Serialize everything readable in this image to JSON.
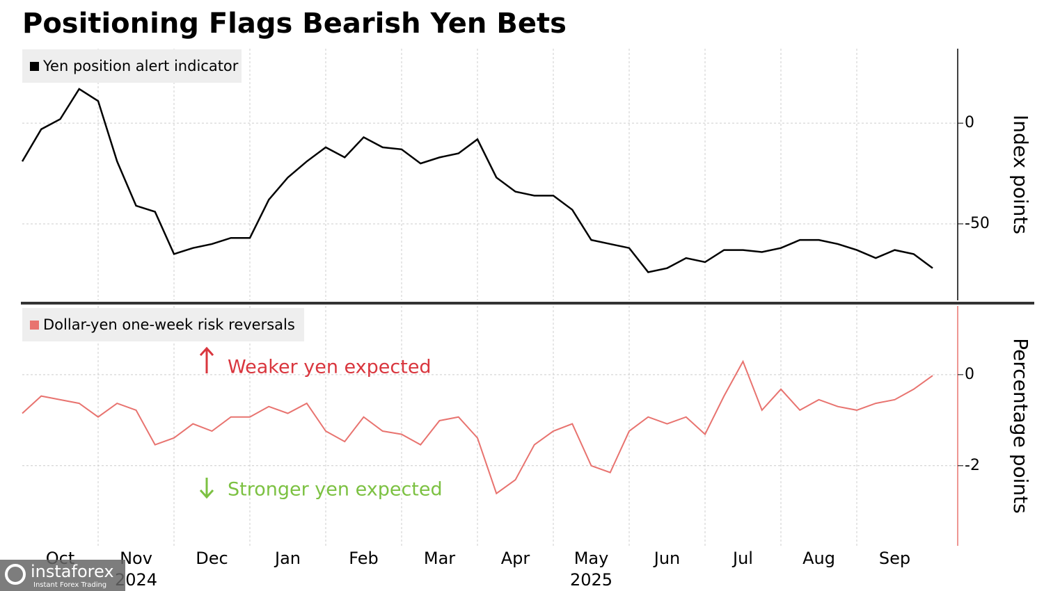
{
  "chart_data": [
    {
      "type": "line",
      "title": "Positioning Flags Bearish Yen Bets",
      "y_label": "Index points",
      "series": [
        {
          "name": "Yen position alert indicator",
          "color": "#000000",
          "values": [
            -19,
            -3,
            2,
            17,
            11,
            -19,
            -41,
            -44,
            -65,
            -62,
            -60,
            -57,
            -57,
            -38,
            -27,
            -19,
            -12,
            -17,
            -7,
            -12,
            -13,
            -20,
            -17,
            -15,
            -8,
            -27,
            -34,
            -36,
            -36,
            -43,
            -58,
            -60,
            -62,
            -74,
            -72,
            -67,
            -69,
            -63,
            -63,
            -64,
            -62,
            -58,
            -58,
            -60,
            -63,
            -67,
            -63,
            -65,
            -72
          ]
        }
      ],
      "ylim": [
        -88,
        37
      ],
      "yticks": [
        0,
        -50
      ],
      "grid": true
    },
    {
      "type": "line",
      "y_label": "Percentage points",
      "categories": [
        null,
        null,
        "Oct",
        null,
        null,
        null,
        "Nov",
        null,
        null,
        null,
        "Dec",
        null,
        null,
        null,
        "Jan",
        null,
        null,
        null,
        "Feb",
        null,
        null,
        null,
        "Mar",
        null,
        null,
        null,
        "Apr",
        null,
        null,
        null,
        "May",
        null,
        null,
        null,
        "Jun",
        null,
        null,
        null,
        "Jul",
        null,
        null,
        null,
        "Aug",
        null,
        null,
        null,
        "Sep",
        null,
        null
      ],
      "category_years": [
        null,
        null,
        null,
        null,
        null,
        null,
        "2024",
        null,
        null,
        null,
        null,
        null,
        null,
        null,
        null,
        null,
        null,
        null,
        null,
        null,
        null,
        null,
        null,
        null,
        null,
        null,
        null,
        null,
        null,
        null,
        "2025",
        null,
        null,
        null,
        null,
        null,
        null,
        null,
        null,
        null,
        null,
        null,
        null,
        null,
        null,
        null,
        null,
        null,
        null
      ],
      "series": [
        {
          "name": "Dollar-yen one-week risk reversals",
          "color": "#e8736f",
          "values": [
            -0.85,
            -0.47,
            -0.55,
            -0.63,
            -0.93,
            -0.63,
            -0.78,
            -1.54,
            -1.39,
            -1.08,
            -1.24,
            -0.93,
            -0.93,
            -0.7,
            -0.85,
            -0.63,
            -1.24,
            -1.47,
            -0.93,
            -1.24,
            -1.31,
            -1.54,
            -1.01,
            -0.93,
            -1.39,
            -2.61,
            -2.31,
            -1.54,
            -1.24,
            -1.08,
            -2.0,
            -2.15,
            -1.24,
            -0.93,
            -1.08,
            -0.93,
            -1.31,
            -0.47,
            0.29,
            -0.78,
            -0.32,
            -0.78,
            -0.55,
            -0.7,
            -0.78,
            -0.63,
            -0.55,
            -0.32,
            -0.02
          ]
        }
      ],
      "ylim": [
        -3.76,
        1.51
      ],
      "yticks": [
        0,
        -2
      ],
      "grid": true,
      "annotations": [
        {
          "text": "Weaker yen expected",
          "color": "#d9363e"
        },
        {
          "text": "Stronger yen expected",
          "color": "#7cc142"
        }
      ]
    }
  ],
  "watermark": {
    "brand": "instaforex",
    "tagline": "Instant Forex Trading"
  }
}
